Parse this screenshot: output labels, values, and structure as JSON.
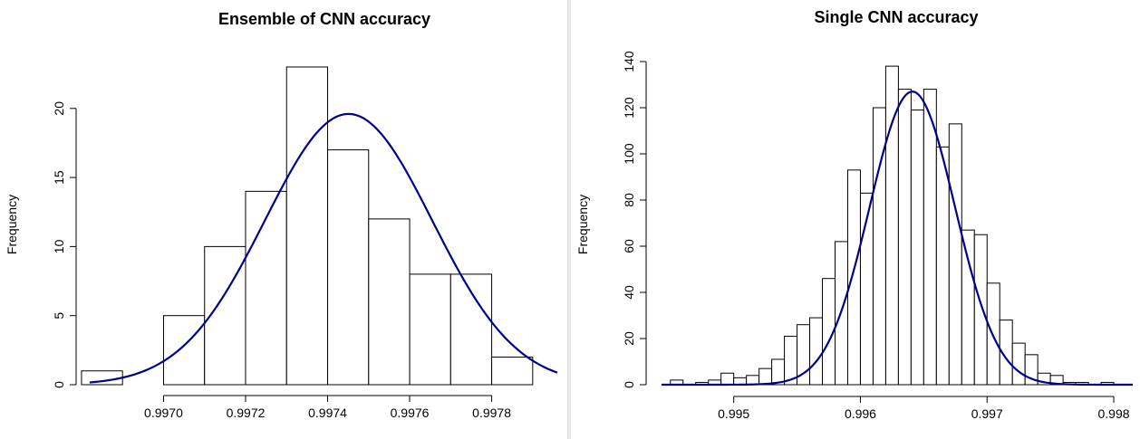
{
  "colors": {
    "curve": "#00008B",
    "bar_fill": "#ffffff",
    "bar_stroke": "#000000"
  },
  "chart_data": [
    {
      "type": "bar",
      "title": "Ensemble of CNN accuracy",
      "xlabel": "",
      "ylabel": "Frequency",
      "xlim": [
        0.99682,
        0.99796
      ],
      "ylim": [
        0,
        23
      ],
      "x_ticks": [
        0.997,
        0.9972,
        0.9974,
        0.9976,
        0.9978
      ],
      "x_tick_labels": [
        "0.9970",
        "0.9972",
        "0.9974",
        "0.9976",
        "0.9978"
      ],
      "y_ticks": [
        0,
        5,
        10,
        15,
        20
      ],
      "y_tick_labels": [
        "0",
        "5",
        "10",
        "15",
        "20"
      ],
      "bin_edges": [
        0.9968,
        0.9969,
        0.997,
        0.9971,
        0.9972,
        0.9973,
        0.9974,
        0.9975,
        0.9976,
        0.9977,
        0.9978,
        0.9979
      ],
      "values": [
        1,
        0,
        5,
        10,
        14,
        23,
        17,
        12,
        8,
        8,
        2
      ],
      "curve": {
        "type": "normal",
        "mean": 0.997451,
        "peak": 19.6,
        "sd": 0.000204
      }
    },
    {
      "type": "bar",
      "title": "Single CNN accuracy",
      "xlabel": "",
      "ylabel": "Frequency",
      "xlim": [
        0.99443,
        0.99815
      ],
      "ylim": [
        0,
        140
      ],
      "x_ticks": [
        0.995,
        0.996,
        0.997,
        0.998
      ],
      "x_tick_labels": [
        "0.995",
        "0.996",
        "0.997",
        "0.998"
      ],
      "y_ticks": [
        0,
        20,
        40,
        60,
        80,
        100,
        120,
        140
      ],
      "y_tick_labels": [
        "0",
        "20",
        "40",
        "60",
        "80",
        "100",
        "120",
        "140"
      ],
      "bin_edges": [
        0.9945,
        0.9946,
        0.9947,
        0.9948,
        0.9949,
        0.995,
        0.9951,
        0.9952,
        0.9953,
        0.9954,
        0.9955,
        0.9956,
        0.9957,
        0.9958,
        0.9959,
        0.996,
        0.9961,
        0.9962,
        0.9963,
        0.9964,
        0.9965,
        0.9966,
        0.9967,
        0.9968,
        0.9969,
        0.997,
        0.9971,
        0.9972,
        0.9973,
        0.9974,
        0.9975,
        0.9976,
        0.9977,
        0.9978,
        0.9979,
        0.998,
        0.9981
      ],
      "values": [
        2,
        0,
        1,
        2,
        5,
        3,
        4,
        7,
        11,
        21,
        26,
        29,
        46,
        62,
        93,
        83,
        120,
        138,
        128,
        119,
        128,
        103,
        113,
        67,
        65,
        44,
        28,
        18,
        13,
        5,
        4,
        1,
        1,
        0,
        1,
        0
      ],
      "curve": {
        "type": "normal",
        "mean": 0.99641,
        "peak": 127,
        "sd": 0.000337
      }
    }
  ]
}
